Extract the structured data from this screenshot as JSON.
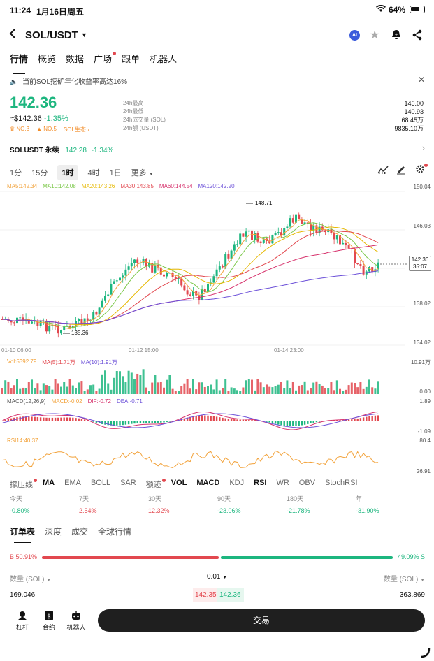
{
  "status_bar": {
    "time": "11:24",
    "date": "1月16日周五",
    "battery": "64%"
  },
  "header": {
    "pair": "SOL/USDT",
    "ai_badge": "AI"
  },
  "tabs": [
    "行情",
    "概览",
    "数据",
    "广场",
    "跟单",
    "机器人"
  ],
  "notice": "当前SOL挖矿年化收益率高达16%",
  "price": {
    "last": "142.36",
    "fiat": "≈$142.36",
    "change": "-1.35%"
  },
  "badges": {
    "rank": "NO.3",
    "hot": "NO.5",
    "eco": "SOL生态"
  },
  "stats": [
    {
      "label": "24h最高",
      "value": "146.00"
    },
    {
      "label": "24h最低",
      "value": "140.93"
    },
    {
      "label": "24h成交量 (SOL)",
      "value": "68.45万"
    },
    {
      "label": "24h额 (USDT)",
      "value": "9835.10万"
    }
  ],
  "perpetual": {
    "name": "SOLUSDT 永续",
    "price": "142.28",
    "change": "-1.34%"
  },
  "intervals": [
    "1分",
    "15分",
    "1时",
    "4时",
    "1日",
    "更多"
  ],
  "ma_legend": [
    {
      "label": "MA5:142.34",
      "color": "#f2a23a"
    },
    {
      "label": "MA10:142.08",
      "color": "#7cc84a"
    },
    {
      "label": "MA20:143.26",
      "color": "#e6b800"
    },
    {
      "label": "MA30:143.85",
      "color": "#e2484f"
    },
    {
      "label": "MA60:144.54",
      "color": "#d6306b"
    },
    {
      "label": "MA120:142.20",
      "color": "#6b4fd8"
    }
  ],
  "price_axis": [
    "150.04",
    "146.03",
    "138.02",
    "134.02"
  ],
  "current_price_tag": {
    "price": "142.36",
    "countdown": "35:07"
  },
  "high_label": "148.71",
  "low_label": "135.36",
  "time_axis": [
    "01-10 06:00",
    "01-12 15:00",
    "01-14 23:00"
  ],
  "vol_legend": {
    "vol": "Vol:5392.79",
    "ma5": "MA(5):1.71万",
    "ma10": "MA(10):1.91万"
  },
  "vol_axis": [
    "10.91万",
    "0.00"
  ],
  "macd_legend": {
    "params": "MACD(12,26,9)",
    "macd": "MACD:-0.02",
    "dif": "DIF:-0.72",
    "dea": "DEA:-0.71"
  },
  "macd_axis": [
    "1.89",
    "-1.09"
  ],
  "rsi_legend": "RSI14:40.37",
  "rsi_axis": [
    "80.4",
    "26.91"
  ],
  "indicator_tabs": [
    "撑压线",
    "MA",
    "EMA",
    "BOLL",
    "SAR",
    "额迹",
    "VOL",
    "MACD",
    "KDJ",
    "RSI",
    "WR",
    "OBV",
    "StochRSI"
  ],
  "performance": [
    {
      "label": "今天",
      "value": "-0.80%"
    },
    {
      "label": "7天",
      "value": "2.54%"
    },
    {
      "label": "30天",
      "value": "12.32%"
    },
    {
      "label": "90天",
      "value": "-23.06%"
    },
    {
      "label": "180天",
      "value": "-21.78%"
    },
    {
      "label": "年",
      "value": "-31.90%"
    }
  ],
  "orderbook_tabs": [
    "订单表",
    "深度",
    "成交",
    "全球行情"
  ],
  "ratio": {
    "buy": "B 50.91%",
    "sell": "49.09% S"
  },
  "qty_header": {
    "left": "数量 (SOL)",
    "mid": "0.01",
    "right": "数量 (SOL)"
  },
  "book_row": {
    "bid_qty": "169.046",
    "bid": "142.35",
    "ask": "142.36",
    "ask_qty": "363.869"
  },
  "bottom_nav": [
    {
      "label": "杠杆",
      "icon": "leverage-icon"
    },
    {
      "label": "合约",
      "icon": "contract-icon"
    },
    {
      "label": "机器人",
      "icon": "robot-icon"
    }
  ],
  "trade_button": "交易",
  "colors": {
    "up": "#1db67f",
    "down": "#e2484f"
  }
}
